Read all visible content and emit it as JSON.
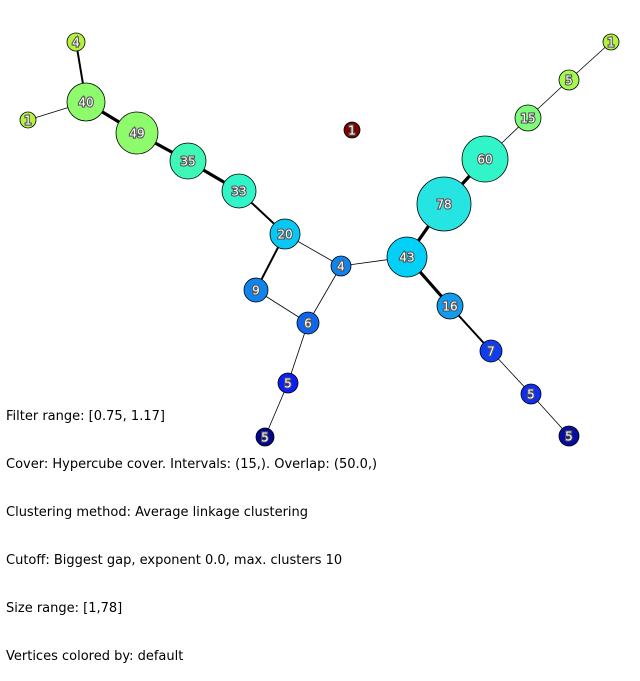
{
  "graph": {
    "nodes": [
      {
        "id": "n4a",
        "label": "4",
        "color": "#b5f23d"
      },
      {
        "id": "n40",
        "label": "40",
        "color": "#8dfb6b"
      },
      {
        "id": "n1a",
        "label": "1",
        "color": "#b5f23d"
      },
      {
        "id": "n49",
        "label": "49",
        "color": "#8dfb6b"
      },
      {
        "id": "n35",
        "label": "35",
        "color": "#3ff8b6"
      },
      {
        "id": "n33",
        "label": "33",
        "color": "#31f5c8"
      },
      {
        "id": "n20",
        "label": "20",
        "color": "#07c7f5"
      },
      {
        "id": "n4b",
        "label": "4",
        "color": "#1183ec"
      },
      {
        "id": "n9",
        "label": "9",
        "color": "#1183ec"
      },
      {
        "id": "n6",
        "label": "6",
        "color": "#1165ea"
      },
      {
        "id": "n5a",
        "label": "5",
        "color": "#0e1ff3"
      },
      {
        "id": "n5b",
        "label": "5",
        "color": "#00068f"
      },
      {
        "id": "n1c",
        "label": "1",
        "color": "#7d0000"
      },
      {
        "id": "n43",
        "label": "43",
        "color": "#02d0f7"
      },
      {
        "id": "n78",
        "label": "78",
        "color": "#25e4e2"
      },
      {
        "id": "n60",
        "label": "60",
        "color": "#31f5c8"
      },
      {
        "id": "n15",
        "label": "15",
        "color": "#7dfc7b"
      },
      {
        "id": "n5c",
        "label": "5",
        "color": "#a4f94d"
      },
      {
        "id": "n1b",
        "label": "1",
        "color": "#b5f23d"
      },
      {
        "id": "n16",
        "label": "16",
        "color": "#129bef"
      },
      {
        "id": "n7",
        "label": "7",
        "color": "#0f3ef1"
      },
      {
        "id": "n5d",
        "label": "5",
        "color": "#0f2ef2"
      },
      {
        "id": "n5e",
        "label": "5",
        "color": "#060ea0"
      }
    ],
    "edges": [
      {
        "from": "n4a",
        "to": "n40",
        "weight": "medium"
      },
      {
        "from": "n1a",
        "to": "n40",
        "weight": "thin"
      },
      {
        "from": "n40",
        "to": "n49",
        "weight": "thick"
      },
      {
        "from": "n49",
        "to": "n35",
        "weight": "thick"
      },
      {
        "from": "n35",
        "to": "n33",
        "weight": "thick"
      },
      {
        "from": "n33",
        "to": "n20",
        "weight": "medium"
      },
      {
        "from": "n20",
        "to": "n4b",
        "weight": "thin"
      },
      {
        "from": "n20",
        "to": "n9",
        "weight": "medium"
      },
      {
        "from": "n9",
        "to": "n6",
        "weight": "thin"
      },
      {
        "from": "n4b",
        "to": "n6",
        "weight": "thin"
      },
      {
        "from": "n6",
        "to": "n5a",
        "weight": "thin"
      },
      {
        "from": "n5a",
        "to": "n5b",
        "weight": "thin"
      },
      {
        "from": "n4b",
        "to": "n43",
        "weight": "thin"
      },
      {
        "from": "n43",
        "to": "n78",
        "weight": "thick"
      },
      {
        "from": "n78",
        "to": "n60",
        "weight": "thick"
      },
      {
        "from": "n60",
        "to": "n15",
        "weight": "thin"
      },
      {
        "from": "n15",
        "to": "n5c",
        "weight": "thin"
      },
      {
        "from": "n5c",
        "to": "n1b",
        "weight": "thin"
      },
      {
        "from": "n43",
        "to": "n16",
        "weight": "thick"
      },
      {
        "from": "n16",
        "to": "n7",
        "weight": "medium"
      },
      {
        "from": "n7",
        "to": "n5d",
        "weight": "thin"
      },
      {
        "from": "n5d",
        "to": "n5e",
        "weight": "thin"
      }
    ]
  },
  "info": {
    "filter_range": "Filter range: [0.75, 1.17]",
    "cover": "Cover: Hypercube cover. Intervals: (15,). Overlap: (50.0,)",
    "clustering": "Clustering method: Average linkage clustering",
    "cutoff": "Cutoff: Biggest gap, exponent 0.0, max. clusters 10",
    "size_range": "Size range: [1,78]",
    "vertices_colored": "Vertices colored by: default"
  }
}
